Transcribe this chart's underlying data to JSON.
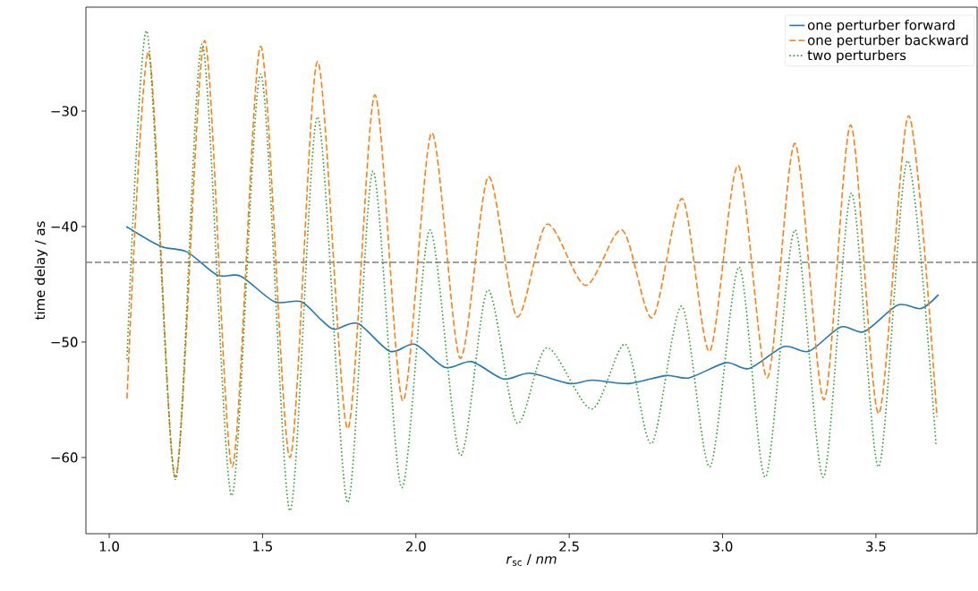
{
  "chart_data": {
    "type": "line",
    "xlabel": "*r*$_{sc}$ / *nm*",
    "ylabel": "time delay / as",
    "xlim": [
      0.924,
      3.83
    ],
    "ylim": [
      -66.6,
      -21.0
    ],
    "xticks": [
      {
        "value": 1.0,
        "label": "1.0"
      },
      {
        "value": 1.5,
        "label": "1.5"
      },
      {
        "value": 2.0,
        "label": "2.0"
      },
      {
        "value": 2.5,
        "label": "2.5"
      },
      {
        "value": 3.0,
        "label": "3.0"
      },
      {
        "value": 3.5,
        "label": "3.5"
      }
    ],
    "yticks": [
      {
        "value": -60,
        "label": "−60"
      },
      {
        "value": -50,
        "label": "−50"
      },
      {
        "value": -40,
        "label": "−40"
      },
      {
        "value": -30,
        "label": "−30"
      }
    ],
    "legend": "top right",
    "grid": false,
    "marker": "none",
    "ref_lines": [
      {
        "axis": "y",
        "value": -43.1,
        "color": "#808080",
        "line_style": "dashed"
      }
    ],
    "series": [
      {
        "name": "one perturber forward",
        "color": "#1f77b4",
        "line_style": "solid",
        "x": [
          1.056,
          1.167,
          1.254,
          1.352,
          1.429,
          1.538,
          1.625,
          1.692,
          1.735,
          1.811,
          1.915,
          1.997,
          2.095,
          2.182,
          2.285,
          2.372,
          2.502,
          2.575,
          2.695,
          2.815,
          2.891,
          3.011,
          3.087,
          3.2,
          3.282,
          3.385,
          3.462,
          3.571,
          3.647,
          3.704
        ],
        "values": [
          -40.0,
          -41.7,
          -42.2,
          -44.2,
          -44.3,
          -46.5,
          -46.5,
          -48.1,
          -48.9,
          -48.4,
          -50.8,
          -50.2,
          -52.2,
          -51.7,
          -53.2,
          -52.7,
          -53.6,
          -53.3,
          -53.6,
          -52.9,
          -53.1,
          -51.8,
          -52.3,
          -50.4,
          -50.8,
          -48.7,
          -49.1,
          -46.8,
          -47.1,
          -45.9
        ]
      },
      {
        "name": "one perturber backward",
        "color": "#ff7f0e",
        "line_style": "dashed",
        "x": [
          1.058,
          1.129,
          1.216,
          1.311,
          1.401,
          1.494,
          1.589,
          1.679,
          1.777,
          1.866,
          1.957,
          2.051,
          2.144,
          2.236,
          2.329,
          2.427,
          2.553,
          2.673,
          2.771,
          2.869,
          2.958,
          3.051,
          3.146,
          3.236,
          3.331,
          3.418,
          3.509,
          3.607,
          3.699
        ],
        "values": [
          -54.9,
          -24.9,
          -61.7,
          -23.9,
          -60.8,
          -24.4,
          -60.0,
          -25.7,
          -57.5,
          -28.6,
          -55.1,
          -31.9,
          -51.4,
          -35.7,
          -47.8,
          -39.8,
          -45.1,
          -40.3,
          -47.9,
          -37.6,
          -50.8,
          -34.7,
          -53.1,
          -32.8,
          -55.0,
          -31.2,
          -56.2,
          -30.4,
          -56.5
        ]
      },
      {
        "name": "two perturbers",
        "color": "#2ca02c",
        "line_style": "dotted",
        "x": [
          1.058,
          1.123,
          1.216,
          1.303,
          1.399,
          1.494,
          1.589,
          1.679,
          1.777,
          1.86,
          1.953,
          2.045,
          2.144,
          2.234,
          2.329,
          2.427,
          2.573,
          2.684,
          2.769,
          2.867,
          2.959,
          3.054,
          3.14,
          3.236,
          3.329,
          3.42,
          3.509,
          3.603,
          3.696
        ],
        "values": [
          -51.5,
          -23.1,
          -61.9,
          -24.2,
          -63.3,
          -26.8,
          -64.6,
          -30.5,
          -63.9,
          -35.2,
          -62.6,
          -40.3,
          -59.8,
          -45.5,
          -57.0,
          -50.5,
          -55.8,
          -50.2,
          -58.8,
          -46.9,
          -60.8,
          -43.5,
          -61.7,
          -40.3,
          -61.7,
          -37.1,
          -60.8,
          -34.3,
          -58.9
        ]
      }
    ]
  }
}
